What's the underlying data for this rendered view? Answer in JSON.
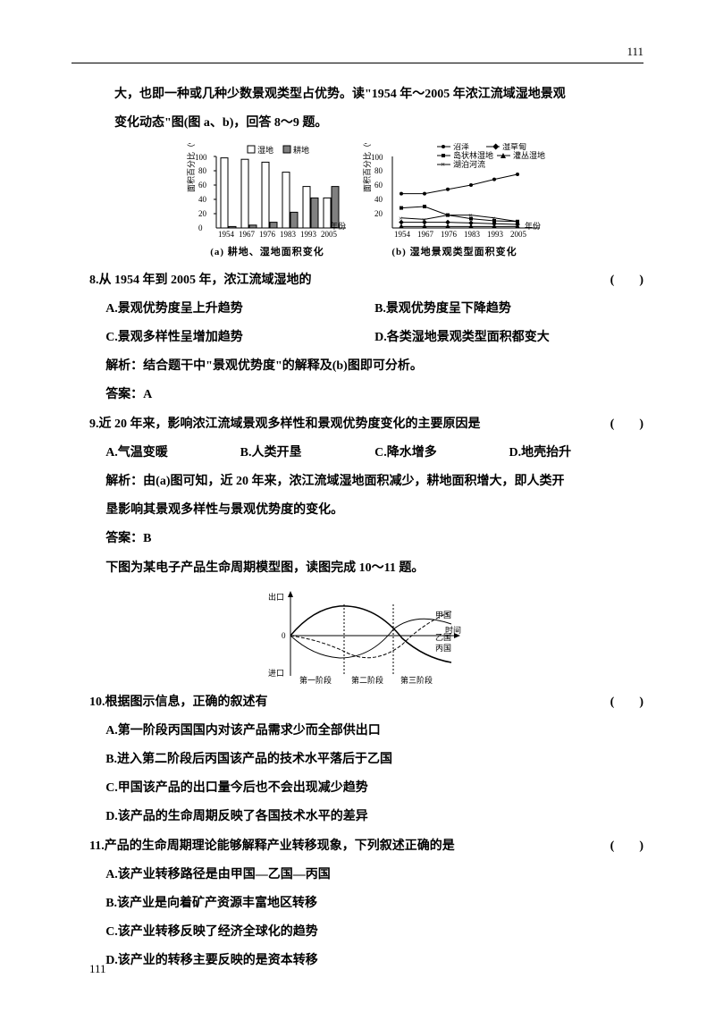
{
  "page_number": "111",
  "intro": {
    "line1": "大，也即一种或几种少数景观类型占优势。读\"1954 年～2005 年浓江流域湿地景观",
    "line2": "变化动态\"图(图 a、b)，回答 8～9 题。"
  },
  "figure1": {
    "chart_a": {
      "y_axis_label": "面积百分比（%）",
      "x_axis_label": "年份",
      "y_ticks": [
        "20",
        "40",
        "60",
        "80",
        "100"
      ],
      "x_ticks": [
        "1954",
        "1967",
        "1976",
        "1983",
        "1993",
        "2005"
      ],
      "legend": [
        "湿地",
        "耕地"
      ],
      "caption": "(a) 耕地、湿地面积变化",
      "wetland_values": [
        98,
        96,
        92,
        78,
        58,
        42
      ],
      "farmland_values": [
        2,
        4,
        8,
        22,
        42,
        58
      ],
      "wetland_color": "#ffffff",
      "farmland_color": "#808080",
      "border_color": "#000000"
    },
    "chart_b": {
      "y_axis_label": "面积百分比（%）",
      "x_axis_label": "年份",
      "y_ticks": [
        "20",
        "40",
        "60",
        "80",
        "100"
      ],
      "x_ticks": [
        "1954",
        "1967",
        "1976",
        "1983",
        "1993",
        "2005"
      ],
      "legend": [
        "沼泽",
        "岛状林湿地",
        "湖泊河流",
        "湿草甸",
        "灌丛湿地"
      ],
      "caption": "(b) 湿地景观类型面积变化",
      "series": {
        "swamp": [
          48,
          48,
          54,
          60,
          68,
          75
        ],
        "island_forest": [
          28,
          30,
          18,
          13,
          10,
          9
        ],
        "lake_river": [
          14,
          12,
          18,
          18,
          14,
          9
        ],
        "wet_meadow": [
          8,
          8,
          8,
          7,
          6,
          5
        ],
        "shrub": [
          2,
          2,
          2,
          2,
          2,
          2
        ]
      }
    }
  },
  "q8": {
    "stem": "8.从 1954 年到 2005 年，浓江流域湿地的",
    "bracket": "(　　)",
    "A": "A.景观优势度呈上升趋势",
    "B": "B.景观优势度呈下降趋势",
    "C": "C.景观多样性呈增加趋势",
    "D": "D.各类湿地景观类型面积都变大",
    "explain": "解析：结合题干中\"景观优势度\"的解释及(b)图即可分析。",
    "answer": "答案：A"
  },
  "q9": {
    "stem": "9.近 20 年来，影响浓江流域景观多样性和景观优势度变化的主要原因是",
    "bracket": "(　　)",
    "A": "A.气温变暖",
    "B": "B.人类开垦",
    "C": "C.降水增多",
    "D": "D.地壳抬升",
    "explain1": "解析：由(a)图可知，近 20 年来，浓江流域湿地面积减少，耕地面积增大，即人类开",
    "explain2": "垦影响其景观多样性与景观优势度的变化。",
    "answer": "答案：B"
  },
  "intro2": "下图为某电子产品生命周期模型图，读图完成 10～11 题。",
  "figure2": {
    "y_top": "出口",
    "y_bottom": "进口",
    "x_label": "时间",
    "countries": [
      "甲国",
      "乙国",
      "丙国"
    ],
    "phases": [
      "第一阶段",
      "第二阶段",
      "第三阶段"
    ],
    "curve_a": [
      [
        0,
        0
      ],
      [
        15,
        18
      ],
      [
        35,
        22
      ],
      [
        55,
        10
      ],
      [
        75,
        -5
      ],
      [
        100,
        -12
      ]
    ],
    "curve_b": [
      [
        0,
        0
      ],
      [
        20,
        -15
      ],
      [
        45,
        -10
      ],
      [
        65,
        12
      ],
      [
        85,
        16
      ],
      [
        100,
        10
      ]
    ],
    "curve_c": [
      [
        0,
        0
      ],
      [
        25,
        -5
      ],
      [
        50,
        -15
      ],
      [
        70,
        -8
      ],
      [
        88,
        10
      ],
      [
        100,
        20
      ]
    ]
  },
  "q10": {
    "stem": "10.根据图示信息，正确的叙述有",
    "bracket": "(　　)",
    "A": "A.第一阶段丙国国内对该产品需求少而全部供出口",
    "B": "B.进入第二阶段后丙国该产品的技术水平落后于乙国",
    "C": "C.甲国该产品的出口量今后也不会出现减少趋势",
    "D": "D.该产品的生命周期反映了各国技术水平的差异"
  },
  "q11": {
    "stem": "11.产品的生命周期理论能够解释产业转移现象，下列叙述正确的是",
    "bracket": "(　　)",
    "A": "A.该产业转移路径是由甲国—乙国—丙国",
    "B": "B.该产业是向着矿产资源丰富地区转移",
    "C": "C.该产业转移反映了经济全球化的趋势",
    "D": "D.该产业的转移主要反映的是资本转移"
  }
}
